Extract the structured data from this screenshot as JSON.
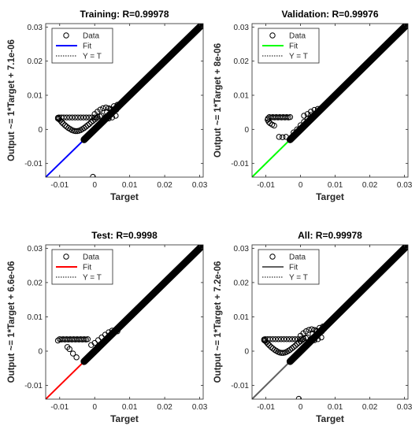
{
  "figure": {
    "background": "#ffffff"
  },
  "chart_data": [
    {
      "type": "scatter",
      "title": "Training: R=0.99978",
      "xlabel": "Target",
      "ylabel": "Output ~= 1*Target + 7.1e-06",
      "xlim": [
        -0.014,
        0.031
      ],
      "ylim": [
        -0.014,
        0.031
      ],
      "xticks": [
        -0.01,
        0,
        0.01,
        0.02,
        0.03
      ],
      "yticks": [
        -0.01,
        0,
        0.01,
        0.02,
        0.03
      ],
      "xtick_labels": [
        "-0.01",
        "0",
        "0.01",
        "0.02",
        "0.03"
      ],
      "ytick_labels": [
        "-0.01",
        "0",
        "0.01",
        "0.02",
        "0.03"
      ],
      "fit_color": "#0000ff",
      "legend": {
        "placement": "top-left",
        "entries": [
          "Data",
          "Fit",
          "Y = T"
        ]
      },
      "fit": {
        "slope": 1,
        "intercept": 7.1e-06
      },
      "diagonal_dense": [
        -0.003,
        0.031
      ],
      "points": [
        [
          -0.0105,
          0.0032
        ],
        [
          -0.0105,
          0.0034
        ],
        [
          -0.0102,
          0.003
        ],
        [
          -0.0098,
          0.0026
        ],
        [
          -0.0094,
          0.0021
        ],
        [
          -0.009,
          0.0017
        ],
        [
          -0.0085,
          0.0012
        ],
        [
          -0.008,
          0.0008
        ],
        [
          -0.0075,
          0.0004
        ],
        [
          -0.007,
          0.0001
        ],
        [
          -0.0065,
          -0.0002
        ],
        [
          -0.006,
          -0.0004
        ],
        [
          -0.0055,
          -0.0005
        ],
        [
          -0.005,
          -0.0005
        ],
        [
          -0.0045,
          -0.0004
        ],
        [
          -0.004,
          -0.0002
        ],
        [
          -0.0035,
          0.0001
        ],
        [
          -0.003,
          0.0004
        ],
        [
          -0.0025,
          0.0008
        ],
        [
          -0.002,
          0.0012
        ],
        [
          -0.0015,
          0.0016
        ],
        [
          -0.001,
          0.0021
        ],
        [
          -0.0005,
          0.0025
        ],
        [
          0.0,
          0.0029
        ],
        [
          0.0005,
          0.0033
        ],
        [
          -0.0102,
          0.0035
        ],
        [
          -0.0095,
          0.0035
        ],
        [
          -0.0088,
          0.0035
        ],
        [
          -0.008,
          0.0035
        ],
        [
          -0.0072,
          0.0035
        ],
        [
          -0.0064,
          0.0035
        ],
        [
          -0.0056,
          0.0035
        ],
        [
          -0.0048,
          0.0035
        ],
        [
          -0.004,
          0.0035
        ],
        [
          -0.0032,
          0.0035
        ],
        [
          -0.0024,
          0.0035
        ],
        [
          -0.0016,
          0.0035
        ],
        [
          -0.0008,
          0.0035
        ],
        [
          0.0,
          0.0035
        ],
        [
          0.0008,
          0.0036
        ],
        [
          0.0015,
          0.0038
        ],
        [
          0.0,
          0.0045
        ],
        [
          0.0008,
          0.0052
        ],
        [
          0.0016,
          0.0058
        ],
        [
          0.0024,
          0.0062
        ],
        [
          0.0032,
          0.0064
        ],
        [
          0.004,
          0.0062
        ],
        [
          0.0048,
          0.0058
        ],
        [
          0.0055,
          0.0055
        ],
        [
          0.0062,
          0.0058
        ],
        [
          0.0068,
          0.0065
        ],
        [
          0.002,
          0.004
        ],
        [
          0.003,
          0.0035
        ],
        [
          0.004,
          0.0032
        ],
        [
          0.005,
          0.0035
        ],
        [
          0.006,
          0.004
        ],
        [
          0.0035,
          0.005
        ],
        [
          0.0045,
          0.006
        ],
        [
          0.0055,
          0.0068
        ],
        [
          0.0065,
          0.0072
        ],
        [
          -0.0005,
          -0.0139
        ]
      ]
    },
    {
      "type": "scatter",
      "title": "Validation: R=0.99976",
      "xlabel": "Target",
      "ylabel": "Output ~= 1*Target + 8e-06",
      "xlim": [
        -0.014,
        0.031
      ],
      "ylim": [
        -0.014,
        0.031
      ],
      "xticks": [
        -0.01,
        0,
        0.01,
        0.02,
        0.03
      ],
      "yticks": [
        -0.01,
        0,
        0.01,
        0.02,
        0.03
      ],
      "xtick_labels": [
        "-0.01",
        "0",
        "0.01",
        "0.02",
        "0.03"
      ],
      "ytick_labels": [
        "-0.01",
        "0",
        "0.01",
        "0.02",
        "0.03"
      ],
      "fit_color": "#00ff00",
      "legend": {
        "placement": "top-left",
        "entries": [
          "Data",
          "Fit",
          "Y = T"
        ]
      },
      "fit": {
        "slope": 1,
        "intercept": 8e-06
      },
      "diagonal_dense": [
        -0.003,
        0.031
      ],
      "points": [
        [
          -0.0094,
          0.0032
        ],
        [
          -0.009,
          0.0036
        ],
        [
          -0.0085,
          0.0035
        ],
        [
          -0.008,
          0.0036
        ],
        [
          -0.0075,
          0.0035
        ],
        [
          -0.007,
          0.0036
        ],
        [
          -0.0065,
          0.0035
        ],
        [
          -0.006,
          0.0036
        ],
        [
          -0.0055,
          0.0035
        ],
        [
          -0.005,
          0.0036
        ],
        [
          -0.0045,
          0.0035
        ],
        [
          -0.004,
          0.0036
        ],
        [
          -0.0035,
          0.0035
        ],
        [
          -0.003,
          0.0036
        ],
        [
          -0.0095,
          0.0028
        ],
        [
          -0.0092,
          0.0022
        ],
        [
          -0.0088,
          0.0018
        ],
        [
          -0.0082,
          0.0014
        ],
        [
          -0.0076,
          0.0011
        ],
        [
          -0.0062,
          -0.0022
        ],
        [
          -0.0052,
          -0.0023
        ],
        [
          -0.0042,
          -0.0022
        ],
        [
          -0.002,
          -0.0009
        ],
        [
          -0.001,
          0.0
        ],
        [
          0.0,
          0.0012
        ],
        [
          0.001,
          0.0022
        ],
        [
          0.002,
          0.0032
        ],
        [
          0.003,
          0.0042
        ],
        [
          0.001,
          0.004
        ],
        [
          0.002,
          0.0045
        ],
        [
          0.003,
          0.0052
        ],
        [
          0.004,
          0.0057
        ],
        [
          0.005,
          0.006
        ],
        [
          0.006,
          0.006
        ],
        [
          0.0035,
          0.0035
        ],
        [
          0.0045,
          0.0045
        ]
      ]
    },
    {
      "type": "scatter",
      "title": "Test: R=0.9998",
      "xlabel": "Target",
      "ylabel": "Output ~= 1*Target + 6.6e-06",
      "xlim": [
        -0.014,
        0.031
      ],
      "ylim": [
        -0.014,
        0.031
      ],
      "xticks": [
        -0.01,
        0,
        0.01,
        0.02,
        0.03
      ],
      "yticks": [
        -0.01,
        0,
        0.01,
        0.02,
        0.03
      ],
      "xtick_labels": [
        "-0.01",
        "0",
        "0.01",
        "0.02",
        "0.03"
      ],
      "ytick_labels": [
        "-0.01",
        "0",
        "0.01",
        "0.02",
        "0.03"
      ],
      "fit_color": "#ff0000",
      "legend": {
        "placement": "top-left",
        "entries": [
          "Data",
          "Fit",
          "Y = T"
        ]
      },
      "fit": {
        "slope": 1,
        "intercept": 6.6e-06
      },
      "diagonal_dense": [
        -0.003,
        0.031
      ],
      "points": [
        [
          -0.0105,
          0.0031
        ],
        [
          -0.01,
          0.0035
        ],
        [
          -0.0095,
          0.0034
        ],
        [
          -0.009,
          0.0035
        ],
        [
          -0.0085,
          0.0034
        ],
        [
          -0.008,
          0.0035
        ],
        [
          -0.0075,
          0.0034
        ],
        [
          -0.007,
          0.0035
        ],
        [
          -0.0065,
          0.0034
        ],
        [
          -0.006,
          0.0035
        ],
        [
          -0.0055,
          0.0034
        ],
        [
          -0.005,
          0.0035
        ],
        [
          -0.0045,
          0.0034
        ],
        [
          -0.004,
          0.0035
        ],
        [
          -0.0035,
          0.0034
        ],
        [
          -0.003,
          0.0035
        ],
        [
          -0.0025,
          0.0034
        ],
        [
          -0.002,
          0.0035
        ],
        [
          -0.0078,
          0.0012
        ],
        [
          -0.0072,
          0.0006
        ],
        [
          -0.0062,
          -0.0007
        ],
        [
          -0.0052,
          -0.0018
        ],
        [
          -0.001,
          0.0018
        ],
        [
          0.0,
          0.0024
        ],
        [
          0.001,
          0.0032
        ],
        [
          0.002,
          0.004
        ],
        [
          0.003,
          0.0048
        ],
        [
          0.004,
          0.0055
        ],
        [
          0.005,
          0.006
        ],
        [
          0.006,
          0.0062
        ],
        [
          0.0065,
          0.0058
        ]
      ]
    },
    {
      "type": "scatter",
      "title": "All: R=0.99978",
      "xlabel": "Target",
      "ylabel": "Output ~= 1*Target + 7.2e-06",
      "xlim": [
        -0.014,
        0.031
      ],
      "ylim": [
        -0.014,
        0.031
      ],
      "xticks": [
        -0.01,
        0,
        0.01,
        0.02,
        0.03
      ],
      "yticks": [
        -0.01,
        0,
        0.01,
        0.02,
        0.03
      ],
      "xtick_labels": [
        "-0.01",
        "0",
        "0.01",
        "0.02",
        "0.03"
      ],
      "ytick_labels": [
        "-0.01",
        "0",
        "0.01",
        "0.02",
        "0.03"
      ],
      "fit_color": "#606060",
      "legend": {
        "placement": "top-left",
        "entries": [
          "Data",
          "Fit",
          "Y = T"
        ]
      },
      "fit": {
        "slope": 1,
        "intercept": 7.2e-06
      },
      "diagonal_dense": [
        -0.003,
        0.031
      ],
      "points": [
        [
          -0.0105,
          0.0032
        ],
        [
          -0.0105,
          0.0034
        ],
        [
          -0.0102,
          0.003
        ],
        [
          -0.0098,
          0.0026
        ],
        [
          -0.0094,
          0.0021
        ],
        [
          -0.009,
          0.0017
        ],
        [
          -0.0085,
          0.0012
        ],
        [
          -0.008,
          0.0008
        ],
        [
          -0.0075,
          0.0004
        ],
        [
          -0.007,
          0.0001
        ],
        [
          -0.0065,
          -0.0002
        ],
        [
          -0.006,
          -0.0004
        ],
        [
          -0.0055,
          -0.0005
        ],
        [
          -0.005,
          -0.0005
        ],
        [
          -0.0045,
          -0.0004
        ],
        [
          -0.004,
          -0.0002
        ],
        [
          -0.0035,
          0.0001
        ],
        [
          -0.003,
          0.0004
        ],
        [
          -0.0025,
          0.0008
        ],
        [
          -0.002,
          0.0012
        ],
        [
          -0.0015,
          0.0016
        ],
        [
          -0.001,
          0.0021
        ],
        [
          -0.0005,
          0.0025
        ],
        [
          0.0,
          0.0029
        ],
        [
          0.0005,
          0.0033
        ],
        [
          -0.0102,
          0.0035
        ],
        [
          -0.0095,
          0.0035
        ],
        [
          -0.0088,
          0.0035
        ],
        [
          -0.008,
          0.0035
        ],
        [
          -0.0072,
          0.0035
        ],
        [
          -0.0064,
          0.0035
        ],
        [
          -0.0056,
          0.0035
        ],
        [
          -0.0048,
          0.0035
        ],
        [
          -0.004,
          0.0035
        ],
        [
          -0.0032,
          0.0035
        ],
        [
          -0.0024,
          0.0035
        ],
        [
          -0.0016,
          0.0035
        ],
        [
          -0.0008,
          0.0035
        ],
        [
          0.0,
          0.0035
        ],
        [
          0.0008,
          0.0036
        ],
        [
          0.0015,
          0.0038
        ],
        [
          0.0,
          0.0045
        ],
        [
          0.0008,
          0.0052
        ],
        [
          0.0016,
          0.0058
        ],
        [
          0.0024,
          0.0062
        ],
        [
          0.0032,
          0.0064
        ],
        [
          0.004,
          0.0062
        ],
        [
          0.0048,
          0.0058
        ],
        [
          0.0055,
          0.0055
        ],
        [
          0.0062,
          0.0058
        ],
        [
          0.0068,
          0.0065
        ],
        [
          0.002,
          0.004
        ],
        [
          0.003,
          0.0035
        ],
        [
          0.004,
          0.0032
        ],
        [
          0.005,
          0.0035
        ],
        [
          0.006,
          0.004
        ],
        [
          0.0035,
          0.005
        ],
        [
          0.0045,
          0.006
        ],
        [
          0.0055,
          0.0068
        ],
        [
          0.0065,
          0.0072
        ],
        [
          -0.0005,
          -0.0139
        ]
      ]
    }
  ]
}
